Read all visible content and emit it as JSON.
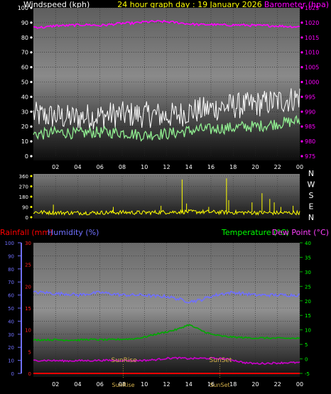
{
  "header": {
    "wind_label": "Windspeed (kph)",
    "title": "24 hour graph day : 19 January 2026",
    "baro_label": "Barometer (hpa)"
  },
  "lower_header": {
    "rain_label": "Rainfall (mm)",
    "humidity_label": "Humidity (%)",
    "temp_label": "Temperature (°C)",
    "dew_label": "Dew Point (°C)"
  },
  "colors": {
    "wind_gust": "#ffffff",
    "wind_avg": "#90ee90",
    "barometer": "#ff00ff",
    "wind_dir": "#ffff00",
    "rain": "#ff0000",
    "humidity": "#7070ff",
    "temperature": "#00aa00",
    "dew_point": "#cc00cc",
    "title": "#ffff00",
    "text": "#ffffff"
  },
  "chart_data": [
    {
      "type": "line",
      "panel": "wind-barometer",
      "x_ticks": [
        "02",
        "04",
        "06",
        "08",
        "10",
        "12",
        "14",
        "16",
        "18",
        "20",
        "22",
        "00"
      ],
      "left_axis": {
        "label": "Windspeed (kph)",
        "ylim": [
          0,
          100
        ],
        "ticks": [
          "0",
          "10",
          "20",
          "30",
          "40",
          "50",
          "60",
          "70",
          "80",
          "90",
          "100"
        ]
      },
      "right_axis": {
        "label": "Barometer (hpa)",
        "ylim": [
          975,
          1025
        ],
        "ticks": [
          "975",
          "980",
          "985",
          "990",
          "995",
          "1000",
          "1005",
          "1010",
          "1015",
          "1020",
          "1025"
        ]
      },
      "x_hours": [
        0,
        1,
        2,
        3,
        4,
        5,
        6,
        7,
        8,
        9,
        10,
        11,
        12,
        13,
        14,
        15,
        16,
        17,
        18,
        19,
        20,
        21,
        22,
        23,
        24
      ],
      "series": [
        {
          "name": "Windspeed (kph)",
          "axis": "left",
          "noise": 9,
          "values": [
            28,
            27,
            27,
            26,
            26,
            27,
            27,
            28,
            28,
            28,
            28,
            28,
            27,
            28,
            30,
            31,
            32,
            33,
            34,
            34,
            35,
            36,
            37,
            38,
            40
          ]
        },
        {
          "name": "",
          "axis": "left",
          "noise": 4,
          "values": [
            15,
            15,
            16,
            16,
            15,
            16,
            16,
            16,
            16,
            15,
            14,
            15,
            15,
            16,
            17,
            18,
            18,
            19,
            19,
            20,
            20,
            21,
            22,
            23,
            24
          ]
        },
        {
          "name": "Barometer (hpa)",
          "axis": "right",
          "noise": 0.4,
          "values": [
            1018.5,
            1018.4,
            1019,
            1019,
            1019.2,
            1019.3,
            1019,
            1019.4,
            1019.8,
            1019.8,
            1020.2,
            1020.4,
            1020.3,
            1020,
            1019.6,
            1019.3,
            1019.4,
            1019.2,
            1019.2,
            1019.2,
            1019,
            1019,
            1018.9,
            1018.7,
            1018.6
          ]
        }
      ]
    },
    {
      "type": "scatter",
      "panel": "wind-direction",
      "x_ticks": [
        "02",
        "04",
        "06",
        "08",
        "10",
        "12",
        "14",
        "16",
        "18",
        "20",
        "22",
        "00"
      ],
      "left_axis": {
        "ylim": [
          0,
          360
        ],
        "ticks": [
          "0",
          "90",
          "180",
          "270",
          "360"
        ]
      },
      "right_labels": [
        "N",
        "W",
        "S",
        "E",
        "N"
      ],
      "x_hours": [
        0,
        2,
        4,
        6,
        8,
        10,
        12,
        14,
        16,
        18,
        20,
        22,
        24
      ],
      "series": [
        {
          "name": "",
          "baseline": [
            45,
            40,
            38,
            40,
            42,
            40,
            45,
            48,
            45,
            42,
            40,
            38,
            40
          ],
          "noise": 18,
          "spikes": [
            [
              1.8,
              110
            ],
            [
              7.2,
              90
            ],
            [
              11.5,
              100
            ],
            [
              13.4,
              330
            ],
            [
              13.8,
              120
            ],
            [
              15.8,
              90
            ],
            [
              17.4,
              340
            ],
            [
              17.6,
              150
            ],
            [
              19.7,
              130
            ],
            [
              20.6,
              210
            ],
            [
              21.3,
              160
            ],
            [
              21.7,
              130
            ],
            [
              22.3,
              90
            ],
            [
              23.4,
              100
            ]
          ]
        }
      ]
    },
    {
      "type": "line",
      "panel": "temperature-humidity",
      "x_ticks": [
        "02",
        "04",
        "06",
        "08",
        "10",
        "12",
        "14",
        "16",
        "18",
        "20",
        "22",
        "00"
      ],
      "left_axis_rain": {
        "label": "Rainfall (mm)",
        "ylim": [
          0,
          30
        ],
        "ticks": [
          "0",
          "5",
          "10",
          "15",
          "20",
          "25",
          "30"
        ]
      },
      "left_axis_humidity": {
        "label": "Humidity (%)",
        "ylim": [
          0,
          100
        ],
        "ticks": [
          "0",
          "10",
          "20",
          "30",
          "40",
          "50",
          "60",
          "70",
          "80",
          "90",
          "100"
        ]
      },
      "right_axis": {
        "label": "Temperature (°C)",
        "ylim": [
          -5,
          40
        ],
        "ticks": [
          "-5",
          "0",
          "5",
          "10",
          "15",
          "20",
          "25",
          "30",
          "35",
          "40"
        ]
      },
      "x_hours": [
        0,
        1,
        2,
        3,
        4,
        5,
        6,
        7,
        8,
        9,
        10,
        11,
        12,
        13,
        14,
        15,
        16,
        17,
        18,
        19,
        20,
        21,
        22,
        23,
        24
      ],
      "series": [
        {
          "name": "Humidity (%)",
          "axis": "humidity",
          "noise": 1.2,
          "values": [
            62,
            62,
            61,
            61,
            60,
            61,
            62,
            61,
            60,
            60,
            60,
            59,
            59,
            57,
            55,
            56,
            59,
            61,
            62,
            61,
            60,
            60,
            60,
            60,
            60
          ]
        },
        {
          "name": "Temperature (°C)",
          "axis": "right",
          "noise": 0.3,
          "values": [
            6.5,
            6.6,
            6.6,
            6.5,
            6.5,
            6.7,
            6.6,
            6.6,
            6.8,
            6.9,
            7.5,
            8.5,
            9.3,
            10.2,
            11.8,
            10,
            8.5,
            7.8,
            7.5,
            7.3,
            7.2,
            7.2,
            7.1,
            7.1,
            7.1
          ]
        },
        {
          "name": "Dew Point (°C)",
          "axis": "right",
          "noise": 0.3,
          "values": [
            -0.6,
            -0.5,
            -0.6,
            -0.7,
            -0.6,
            -0.6,
            -0.5,
            -0.5,
            -0.5,
            -0.6,
            -0.5,
            -0.3,
            0.2,
            0.3,
            0.1,
            0.2,
            0.2,
            0.1,
            -0.4,
            -1.3,
            -1.6,
            -1.5,
            -1.4,
            -1.3,
            -1.3
          ]
        },
        {
          "name": "Rainfall (mm)",
          "axis": "rain",
          "noise": 0,
          "values": [
            0,
            0,
            0,
            0,
            0,
            0,
            0,
            0,
            0,
            0,
            0,
            0,
            0,
            0,
            0,
            0,
            0,
            0,
            0,
            0,
            0,
            0,
            0,
            0,
            0
          ]
        }
      ],
      "annotations": [
        {
          "text": "SunRise",
          "hour": 8.1
        },
        {
          "text": "SunSet",
          "hour": 16.8
        }
      ]
    }
  ]
}
